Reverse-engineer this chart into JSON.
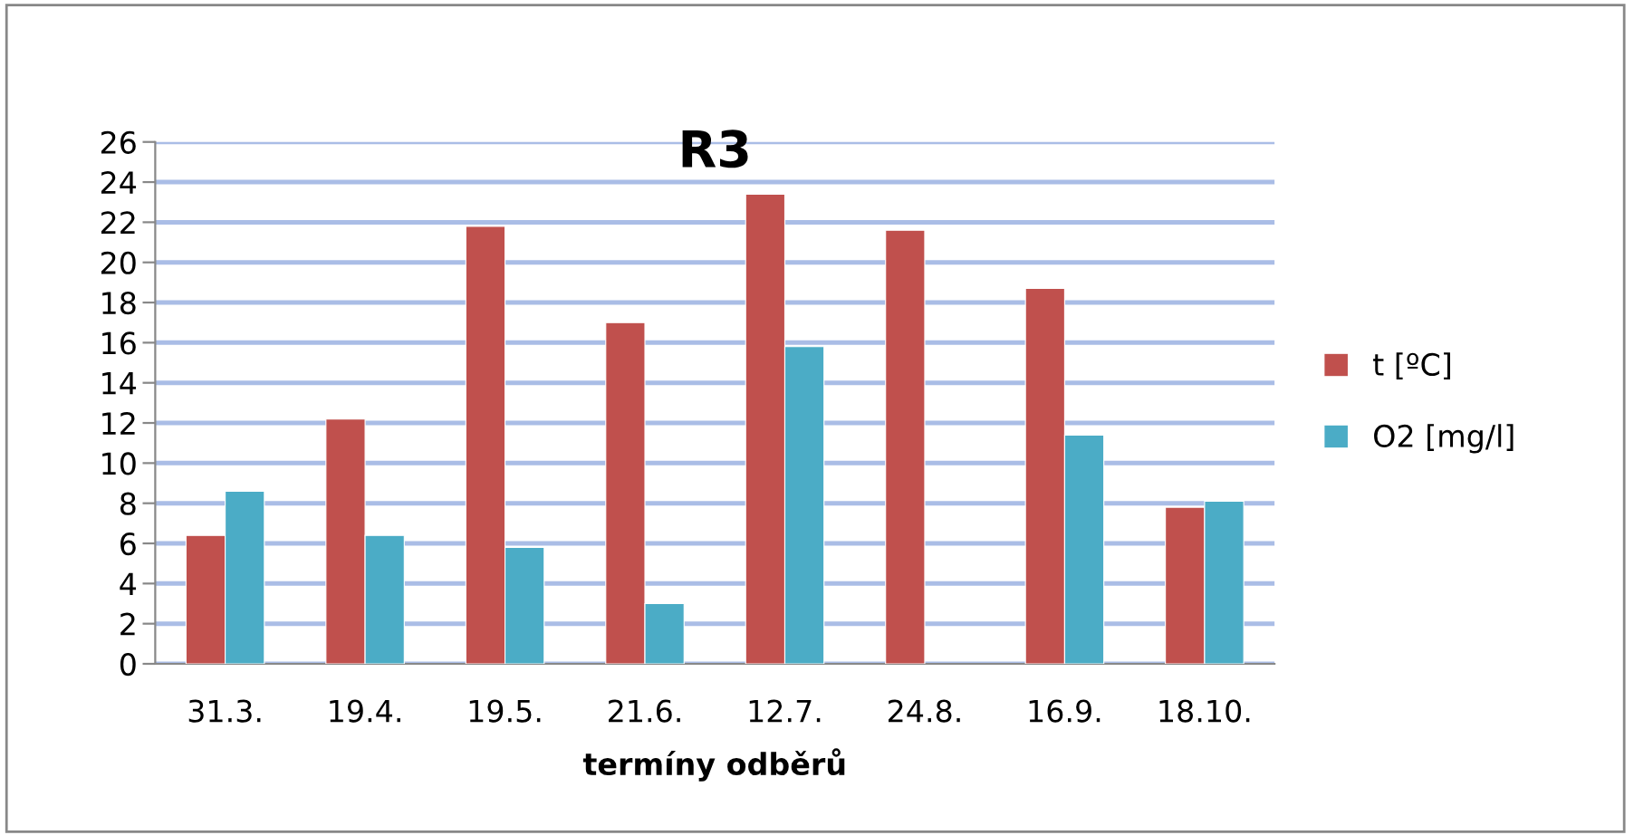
{
  "chart_data": {
    "type": "bar",
    "title": "R3",
    "xlabel": "termíny odběrů",
    "categories": [
      "31.3.",
      "19.4.",
      "19.5.",
      "21.6.",
      "12.7.",
      "24.8.",
      "16.9.",
      "18.10."
    ],
    "series": [
      {
        "name": "t [ºC]",
        "color": "#c0504d",
        "values": [
          6.4,
          12.2,
          21.8,
          17.0,
          23.4,
          21.6,
          18.7,
          7.8
        ]
      },
      {
        "name": "O2 [mg/l]",
        "color": "#4bacc6",
        "values": [
          8.6,
          6.4,
          5.8,
          3.0,
          15.8,
          null,
          11.4,
          8.1
        ]
      }
    ],
    "ylim": [
      0,
      26
    ],
    "yticks": [
      0,
      2,
      4,
      6,
      8,
      10,
      12,
      14,
      16,
      18,
      20,
      22,
      24,
      26
    ],
    "grid": "y",
    "legend": "right"
  }
}
